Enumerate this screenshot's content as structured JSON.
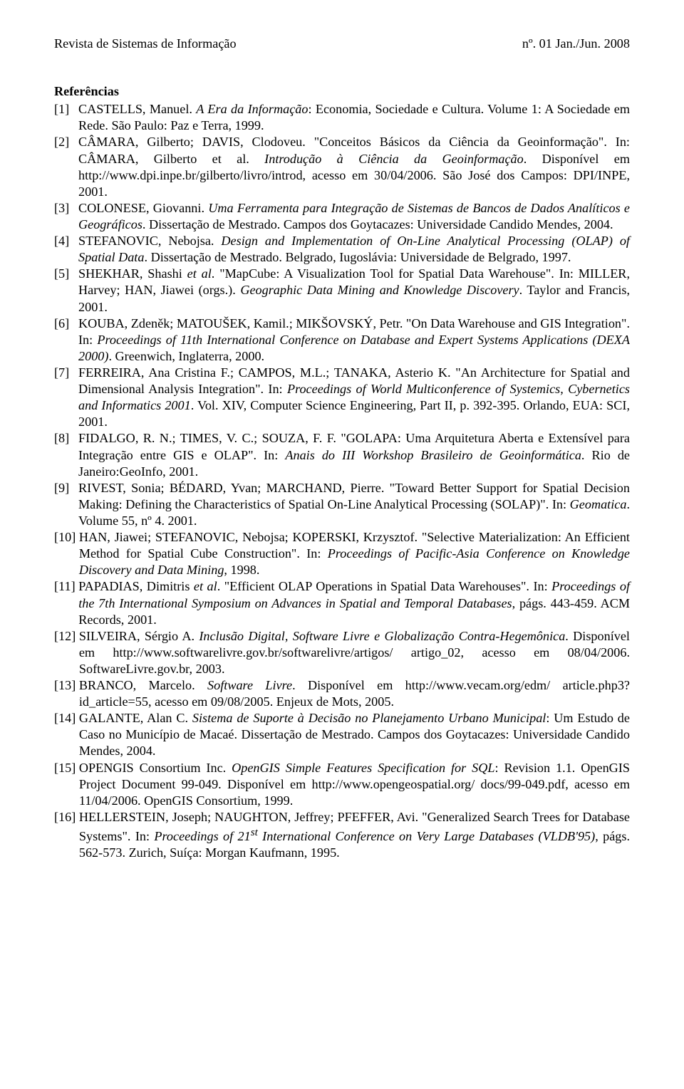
{
  "header": {
    "journal": "Revista de Sistemas de Informação",
    "issue": "nº. 01 Jan./Jun. 2008"
  },
  "section_title": "Referências",
  "refs": [
    {
      "num": "[1]",
      "pre": "CASTELLS, Manuel. ",
      "it1": "A Era da Informação",
      "post": ": Economia, Sociedade e Cultura. Volume 1: A Sociedade em Rede. São Paulo: Paz e Terra, 1999."
    },
    {
      "num": "[2]",
      "pre": "CÂMARA, Gilberto; DAVIS, Clodoveu. \"Conceitos Básicos da Ciência da Geoinformação\". In: CÂMARA, Gilberto et al. ",
      "it1": "Introdução à Ciência da Geoinformação",
      "post": ". Disponível em http://www.dpi.inpe.br/gilberto/livro/introd, acesso em 30/04/2006. São José dos Campos: DPI/INPE, 2001."
    },
    {
      "num": "[3]",
      "pre": "COLONESE, Giovanni. ",
      "it1": "Uma Ferramenta para Integração de Sistemas de Bancos de Dados Analíticos e Geográficos",
      "post": ". Dissertação de Mestrado. Campos dos Goytacazes: Universidade Candido Mendes, 2004."
    },
    {
      "num": "[4]",
      "pre": "STEFANOVIC, Nebojsa. ",
      "it1": "Design and Implementation of On-Line Analytical Processing (OLAP) of Spatial Data",
      "post": ". Dissertação de Mestrado. Belgrado, Iugoslávia: Universidade de Belgrado, 1997."
    },
    {
      "num": "[5]",
      "pre": "SHEKHAR, Shashi ",
      "it1": "et al",
      "mid": ". \"MapCube: A Visualization Tool for Spatial Data Warehouse\". In: MILLER, Harvey; HAN, Jiawei (orgs.). ",
      "it2": "Geographic Data Mining and Knowledge Discovery",
      "post": ". Taylor and Francis, 2001."
    },
    {
      "num": "[6]",
      "pre": "KOUBA, Zdeněk; MATOUŠEK, Kamil.; MIKŠOVSKÝ, Petr. \"On Data Warehouse and GIS Integration\". In: ",
      "it1": "Proceedings of 11th International Conference on Database and Expert Systems Applications (DEXA 2000)",
      "post": ". Greenwich, Inglaterra, 2000."
    },
    {
      "num": "[7]",
      "pre": "FERREIRA, Ana Cristina F.; CAMPOS, M.L.; TANAKA, Asterio K. \"An Architecture for Spatial and Dimensional Analysis Integration\". In: ",
      "it1": "Proceedings of World Multiconference of Systemics, Cybernetics and Informatics 2001",
      "post": ". Vol. XIV, Computer Science Engineering, Part II, p. 392-395. Orlando, EUA: SCI, 2001."
    },
    {
      "num": "[8]",
      "pre": "FIDALGO, R. N.; TIMES, V. C.; SOUZA, F. F. \"GOLAPA: Uma Arquitetura Aberta e Extensível para Integração entre GIS e OLAP\". In: ",
      "it1": "Anais do III Workshop Brasileiro de Geoinformática",
      "post": ". Rio de Janeiro:GeoInfo, 2001."
    },
    {
      "num": "[9]",
      "pre": "RIVEST, Sonia; BÉDARD, Yvan; MARCHAND, Pierre. \"Toward Better Support for Spatial Decision Making: Defining the Characteristics of Spatial On-Line Analytical Processing (SOLAP)\". In: ",
      "it1": "Geomatica",
      "post": ". Volume 55, nº 4. 2001."
    },
    {
      "num": "[10]",
      "pre": "HAN, Jiawei; STEFANOVIC, Nebojsa; KOPERSKI, Krzysztof. \"Selective Materialization: An Efficient Method for Spatial Cube Construction\". In: ",
      "it1": "Proceedings of Pacific-Asia Conference on Knowledge Discovery and Data Mining",
      "post": ", 1998."
    },
    {
      "num": "[11]",
      "pre": "PAPADIAS, Dimitris ",
      "it1": "et al",
      "mid": ". \"Efficient OLAP Operations in Spatial Data Warehouses\". In: ",
      "it2": "Proceedings of the 7th International Symposium on Advances in Spatial and Temporal Databases",
      "post": ", págs. 443-459. ACM Records, 2001."
    },
    {
      "num": "[12]",
      "pre": "SILVEIRA, Sérgio A. ",
      "it1": "Inclusão Digital, Software Livre e Globalização Contra-Hegemônica",
      "post": ". Disponível em http://www.softwarelivre.gov.br/softwarelivre/artigos/ artigo_02, acesso em 08/04/2006. SoftwareLivre.gov.br, 2003."
    },
    {
      "num": "[13]",
      "pre": "BRANCO, Marcelo. ",
      "it1": "Software Livre",
      "post": ". Disponível em http://www.vecam.org/edm/ article.php3?id_article=55, acesso em 09/08/2005. Enjeux de Mots, 2005."
    },
    {
      "num": "[14]",
      "pre": "GALANTE, Alan C. ",
      "it1": "Sistema de Suporte à Decisão no Planejamento Urbano Municipal",
      "post": ": Um Estudo de Caso no Município de Macaé. Dissertação de Mestrado. Campos dos Goytacazes: Universidade Candido Mendes, 2004."
    },
    {
      "num": "[15]",
      "pre": "OPENGIS Consortium Inc. ",
      "it1": "OpenGIS Simple Features Specification for SQL",
      "post": ": Revision 1.1. OpenGIS Project Document 99-049. Disponível em http://www.opengeospatial.org/ docs/99-049.pdf, acesso em 11/04/2006. OpenGIS Consortium, 1999."
    },
    {
      "num": "[16]",
      "pre": "HELLERSTEIN, Joseph; NAUGHTON, Jeffrey; PFEFFER, Avi. \"Generalized Search Trees for Database Systems\". In: ",
      "it1": "Proceedings of 21",
      "sup": "st",
      "it2": " International Conference on Very Large Databases (VLDB'95)",
      "post": ", págs. 562-573. Zurich, Suíça: Morgan Kaufmann, 1995."
    }
  ]
}
